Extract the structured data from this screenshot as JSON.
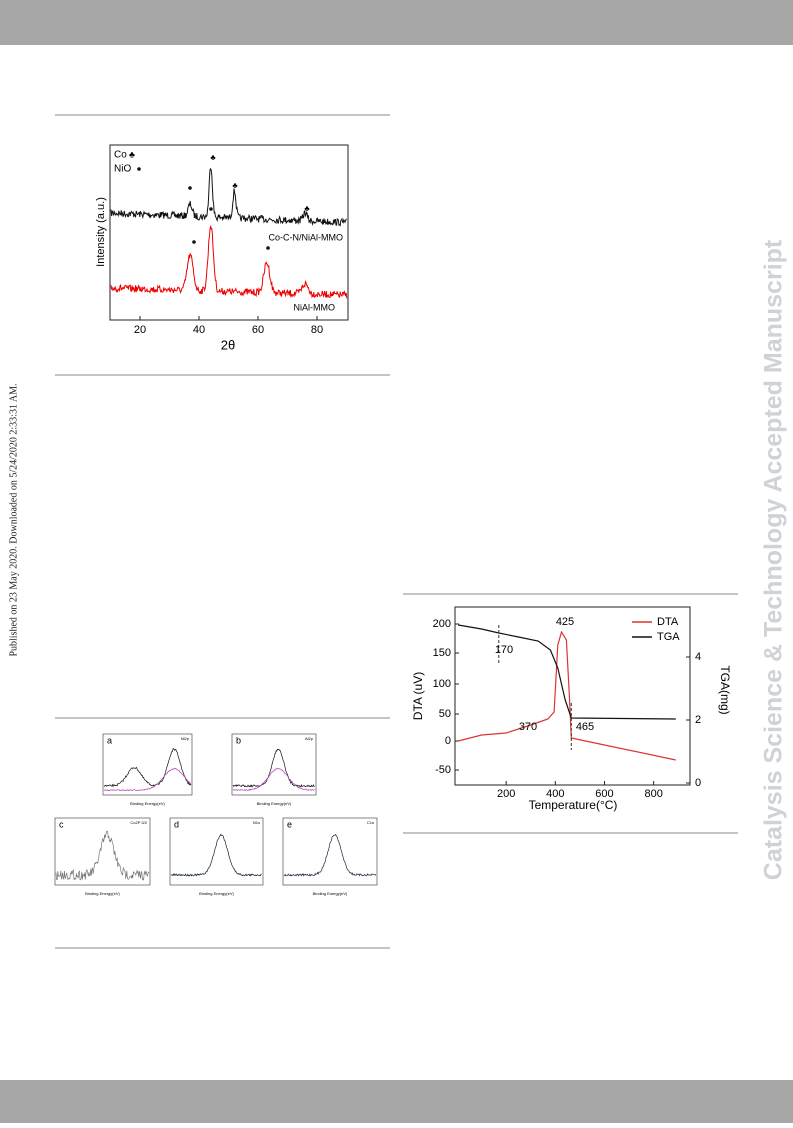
{
  "side_note": "Published on 23 May 2020. Downloaded on 5/24/2020 2:33:31 AM.",
  "watermark": "Catalysis Science & Technology Accepted Manuscript",
  "xrd": {
    "legend": [
      "Co",
      "NiO"
    ],
    "y_label": "Intensity (a.u.)",
    "x_label": "2θ",
    "xticks": [
      "20",
      "40",
      "60",
      "80"
    ],
    "curve_labels": [
      "Co-C-N/NiAl-MMO",
      "NiAl-MMO"
    ]
  },
  "xps": {
    "panels": [
      {
        "letter": "a",
        "title": "Ni2p"
      },
      {
        "letter": "b",
        "title": "Al2p"
      },
      {
        "letter": "c",
        "title": "Co2P 3/2"
      },
      {
        "letter": "d",
        "title": "N1s"
      },
      {
        "letter": "e",
        "title": "C1s"
      }
    ],
    "x_label": "Binding Energy(eV)"
  },
  "thermal": {
    "legend": [
      "DTA",
      "TGA"
    ],
    "y_label": "DTA (uV)",
    "y2_label": "TGA(mg)",
    "x_label": "Temperature(°C)",
    "xticks": [
      "200",
      "400",
      "600",
      "800"
    ],
    "yticks": [
      "200",
      "150",
      "100",
      "50",
      "0",
      "-50"
    ],
    "y2ticks": [
      "4",
      "2",
      "0"
    ],
    "annotations": [
      "425",
      "170",
      "370",
      "465"
    ]
  }
}
